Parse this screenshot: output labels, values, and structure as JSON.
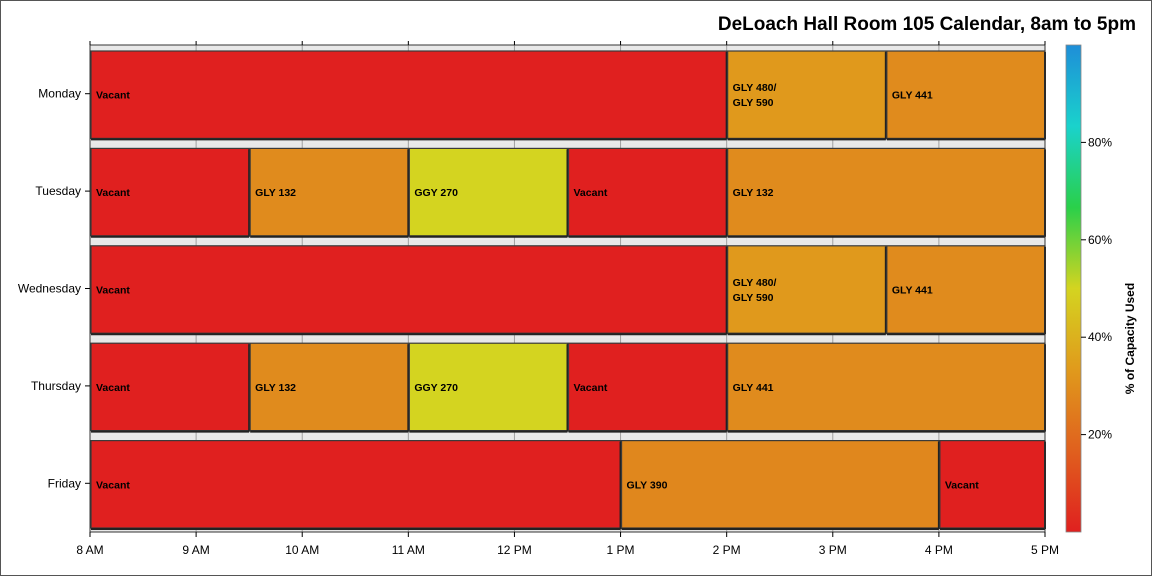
{
  "chart_data": {
    "type": "bar",
    "subtype": "timeline",
    "title": "DeLoach Hall Room 105 Calendar, 8am to 5pm",
    "xlabel": "",
    "ylabel": "",
    "x_ticks": [
      "8 AM",
      "9 AM",
      "10 AM",
      "11 AM",
      "12 PM",
      "1 PM",
      "2 PM",
      "3 PM",
      "4 PM",
      "5 PM"
    ],
    "xlim": [
      8,
      17
    ],
    "categories": [
      "Monday",
      "Tuesday",
      "Wednesday",
      "Thursday",
      "Friday"
    ],
    "rows": [
      {
        "day": "Monday",
        "segments": [
          {
            "label": [
              "Vacant"
            ],
            "start": 8,
            "end": 14,
            "capacity": 0
          },
          {
            "label": [
              "GLY 480/",
              "GLY 590"
            ],
            "start": 14,
            "end": 15.5,
            "capacity": 33
          },
          {
            "label": [
              "GLY 441"
            ],
            "start": 15.5,
            "end": 17,
            "capacity": 29
          }
        ]
      },
      {
        "day": "Tuesday",
        "segments": [
          {
            "label": [
              "Vacant"
            ],
            "start": 8,
            "end": 9.5,
            "capacity": 0
          },
          {
            "label": [
              "GLY 132"
            ],
            "start": 9.5,
            "end": 11,
            "capacity": 29
          },
          {
            "label": [
              "GGY 270"
            ],
            "start": 11,
            "end": 12.5,
            "capacity": 50
          },
          {
            "label": [
              "Vacant"
            ],
            "start": 12.5,
            "end": 14,
            "capacity": 0
          },
          {
            "label": [
              "GLY 132"
            ],
            "start": 14,
            "end": 17,
            "capacity": 29
          }
        ]
      },
      {
        "day": "Wednesday",
        "segments": [
          {
            "label": [
              "Vacant"
            ],
            "start": 8,
            "end": 14,
            "capacity": 0
          },
          {
            "label": [
              "GLY 480/",
              "GLY 590"
            ],
            "start": 14,
            "end": 15.5,
            "capacity": 33
          },
          {
            "label": [
              "GLY 441"
            ],
            "start": 15.5,
            "end": 17,
            "capacity": 29
          }
        ]
      },
      {
        "day": "Thursday",
        "segments": [
          {
            "label": [
              "Vacant"
            ],
            "start": 8,
            "end": 9.5,
            "capacity": 0
          },
          {
            "label": [
              "GLY 132"
            ],
            "start": 9.5,
            "end": 11,
            "capacity": 29
          },
          {
            "label": [
              "GGY 270"
            ],
            "start": 11,
            "end": 12.5,
            "capacity": 50
          },
          {
            "label": [
              "Vacant"
            ],
            "start": 12.5,
            "end": 14,
            "capacity": 0
          },
          {
            "label": [
              "GLY 441"
            ],
            "start": 14,
            "end": 17,
            "capacity": 29
          }
        ]
      },
      {
        "day": "Friday",
        "segments": [
          {
            "label": [
              "Vacant"
            ],
            "start": 8,
            "end": 13,
            "capacity": 0
          },
          {
            "label": [
              "GLY 390"
            ],
            "start": 13,
            "end": 16,
            "capacity": 28
          },
          {
            "label": [
              "Vacant"
            ],
            "start": 16,
            "end": 17,
            "capacity": 0
          }
        ]
      }
    ],
    "colorbar": {
      "title": "% of Capacity Used",
      "ticks": [
        {
          "value": 20,
          "label": "20%"
        },
        {
          "value": 40,
          "label": "40%"
        },
        {
          "value": 60,
          "label": "60%"
        },
        {
          "value": 80,
          "label": "80%"
        }
      ],
      "range": [
        0,
        100
      ],
      "stops": [
        "#e0201f",
        "#e0601e",
        "#e09a1c",
        "#d4d420",
        "#2ad04a",
        "#1ad2cc",
        "#1e8ed8"
      ]
    },
    "grid": true,
    "row_band_color": "#e8e8e8"
  }
}
